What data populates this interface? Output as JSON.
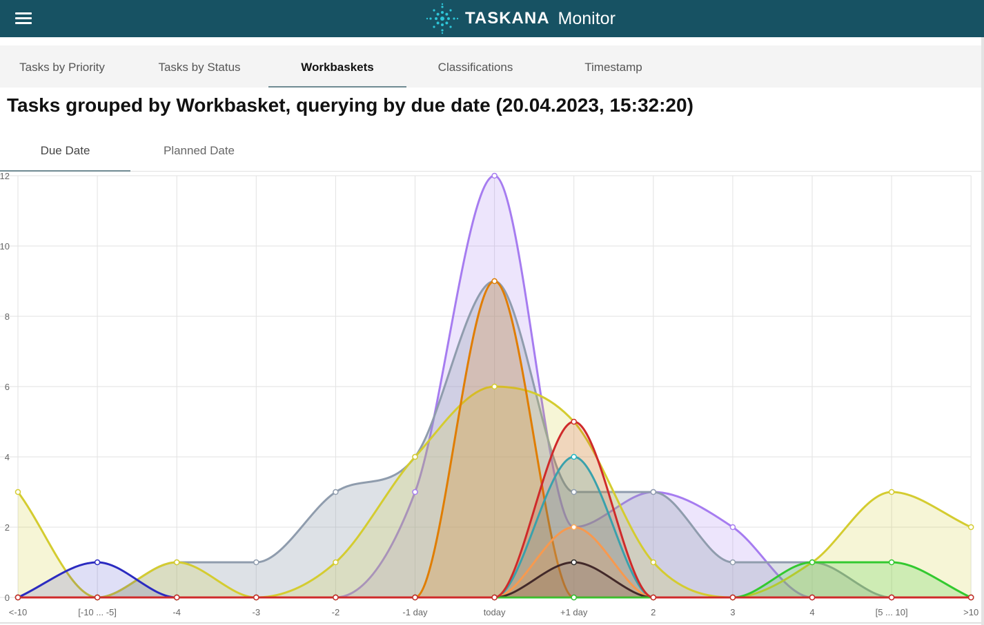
{
  "app": {
    "title": "TASKANA",
    "subtitle": "Monitor",
    "menu_icon": "hamburger-menu-icon",
    "logo_icon": "taskana-starburst-logo",
    "header_color": "#175263"
  },
  "tabs": [
    {
      "label": "Tasks by Priority",
      "active": false
    },
    {
      "label": "Tasks by Status",
      "active": false
    },
    {
      "label": "Workbaskets",
      "active": true
    },
    {
      "label": "Classifications",
      "active": false
    },
    {
      "label": "Timestamp",
      "active": false
    }
  ],
  "page_title": "Tasks grouped by Workbasket, querying by due date (20.04.2023, 15:32:20)",
  "subtabs": [
    {
      "label": "Due Date",
      "active": true
    },
    {
      "label": "Planned Date",
      "active": false
    }
  ],
  "chart_data": {
    "type": "area",
    "categories": [
      "<-10",
      "[-10 ... -5]",
      "-4",
      "-3",
      "-2",
      "-1 day",
      "today",
      "+1 day",
      "2",
      "3",
      "4",
      "[5 ... 10]",
      ">10"
    ],
    "yticks": [
      "0",
      "2",
      "4",
      "6",
      "8",
      "10",
      "12"
    ],
    "ylim": [
      0,
      12
    ],
    "grid": true,
    "series": [
      {
        "color": "#a67cf0",
        "fill": "rgba(166,124,240,0.2)",
        "values": [
          0,
          0,
          0,
          0,
          0,
          3,
          12,
          2,
          3,
          2,
          0,
          0,
          0
        ]
      },
      {
        "color": "#8f9cad",
        "fill": "rgba(143,156,173,0.3)",
        "values": [
          0,
          0,
          1,
          1,
          3,
          4,
          9,
          3,
          3,
          1,
          1,
          0,
          0
        ]
      },
      {
        "color": "#d4cc30",
        "fill": "rgba(212,204,48,0.2)",
        "values": [
          3,
          0,
          1,
          0,
          1,
          4,
          6,
          5,
          1,
          0,
          1,
          3,
          2
        ]
      },
      {
        "color": "#e07d00",
        "fill": "rgba(224,125,0,0.2)",
        "values": [
          0,
          0,
          0,
          0,
          0,
          0,
          9,
          0,
          0,
          0,
          0,
          0,
          0
        ]
      },
      {
        "color": "#2b2bc0",
        "fill": "rgba(43,43,192,0.15)",
        "values": [
          0,
          1,
          0,
          0,
          0,
          0,
          0,
          0,
          0,
          0,
          0,
          0,
          0
        ]
      },
      {
        "color": "#1fb7c4",
        "fill": "rgba(31,183,196,0.2)",
        "values": [
          0,
          0,
          0,
          0,
          0,
          0,
          0,
          4,
          0,
          0,
          0,
          0,
          0
        ]
      },
      {
        "color": "#ffad55",
        "fill": "rgba(255,173,85,0.2)",
        "values": [
          0,
          0,
          0,
          0,
          0,
          0,
          0,
          2,
          0,
          0,
          0,
          0,
          0
        ]
      },
      {
        "color": "#2a2a2a",
        "fill": "rgba(42,42,42,0.12)",
        "values": [
          0,
          0,
          0,
          0,
          0,
          0,
          0,
          1,
          0,
          0,
          0,
          0,
          0
        ]
      },
      {
        "color": "#33c92f",
        "fill": "rgba(51,201,47,0.2)",
        "values": [
          0,
          0,
          0,
          0,
          0,
          0,
          0,
          0,
          0,
          0,
          1,
          1,
          0
        ]
      },
      {
        "color": "#cf2a2a",
        "fill": "rgba(207,42,42,0.15)",
        "values": [
          0,
          0,
          0,
          0,
          0,
          0,
          0,
          5,
          0,
          0,
          0,
          0,
          0
        ]
      }
    ]
  }
}
